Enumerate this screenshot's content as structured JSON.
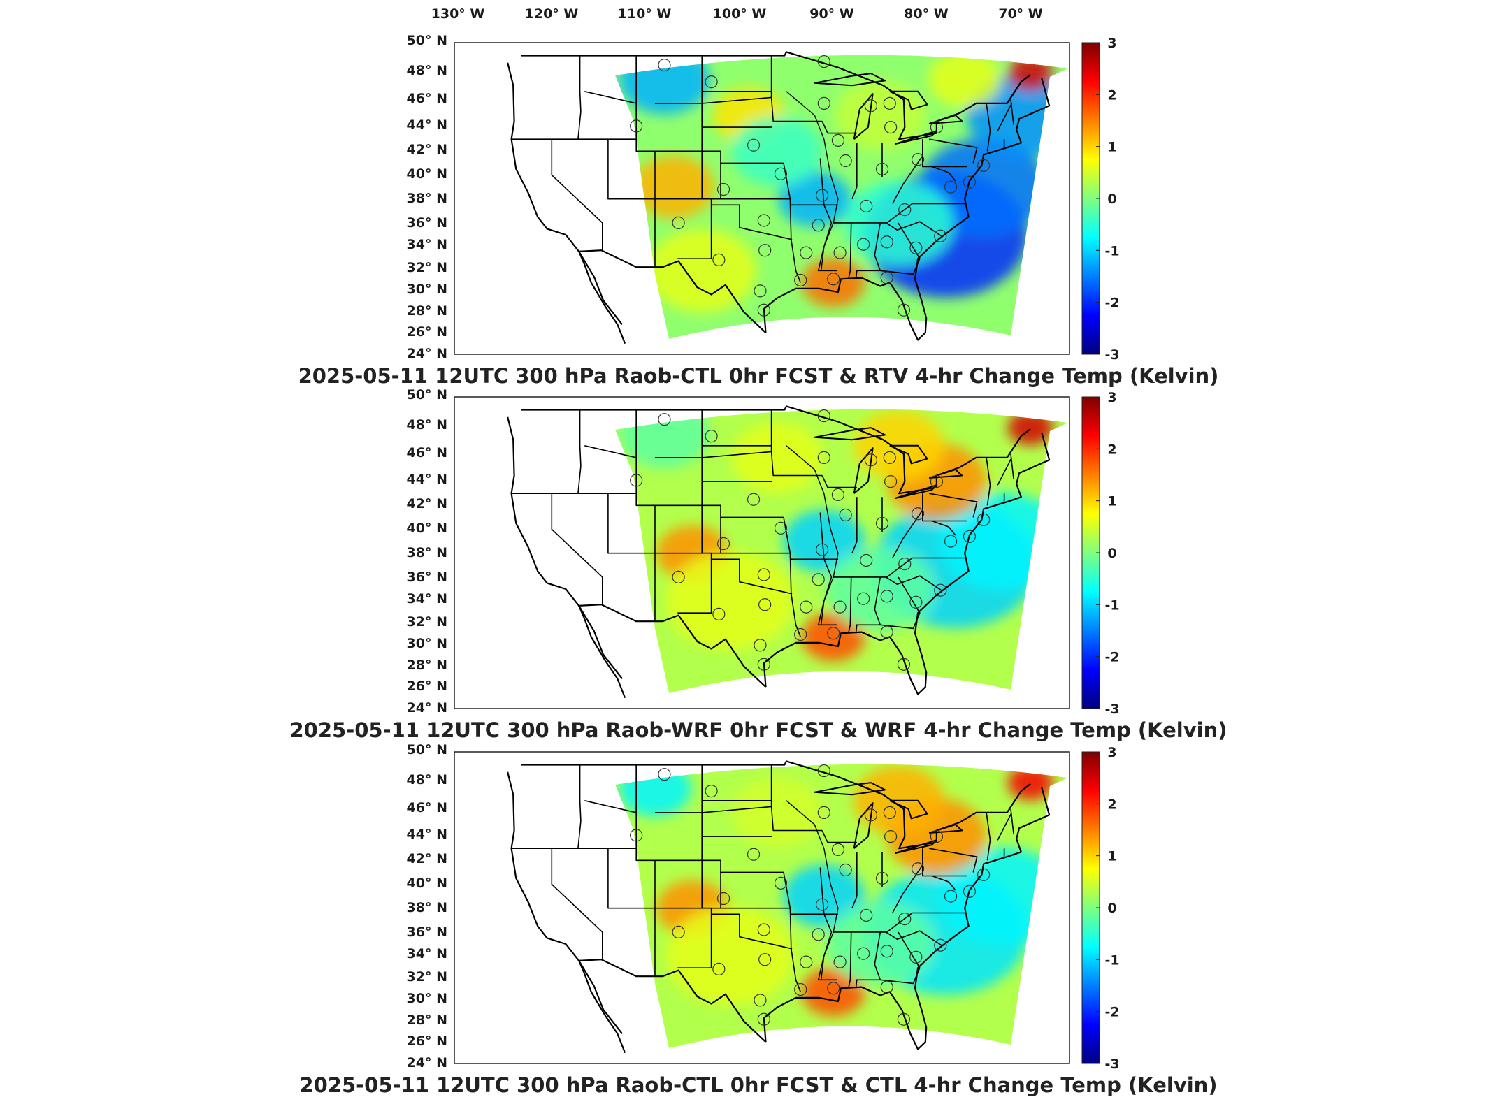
{
  "longitude_labels": [
    "130° W",
    "120° W",
    "110° W",
    "100° W",
    "90° W",
    "80° W",
    "70° W"
  ],
  "latitude_labels": [
    "50° N",
    "48° N",
    "46° N",
    "44° N",
    "42° N",
    "40° N",
    "38° N",
    "36° N",
    "34° N",
    "32° N",
    "30° N",
    "28° N",
    "26° N",
    "24° N"
  ],
  "colorbar": {
    "ticks": [
      "3",
      "2",
      "1",
      "0",
      "-1",
      "-2",
      "-3"
    ],
    "min": -3,
    "max": 3,
    "colormap": "jet",
    "colors": [
      "#00007f",
      "#0000ff",
      "#007fff",
      "#00ffff",
      "#7fff7f",
      "#ffff00",
      "#ff7f00",
      "#ff0000",
      "#7f0000"
    ]
  },
  "panels": [
    {
      "title": "2025-05-11 12UTC 300 hPa Raob-CTL 0hr FCST & RTV 4-hr Change Temp (Kelvin)"
    },
    {
      "title": "2025-05-11 12UTC 300 hPa Raob-WRF 0hr FCST & WRF 4-hr Change Temp (Kelvin)"
    },
    {
      "title": "2025-05-11 12UTC 300 hPa Raob-CTL 0hr FCST & CTL 4-hr Change Temp (Kelvin)"
    }
  ],
  "map": {
    "region": "Continental United States",
    "projection": "Lambert conformal (curved domain)",
    "field_extent": {
      "lon_range": [
        -111,
        -68
      ],
      "lat_range": [
        25,
        49
      ]
    },
    "boundaries": [
      "coastline",
      "US state borders"
    ],
    "raob_station_marker": "circle"
  }
}
